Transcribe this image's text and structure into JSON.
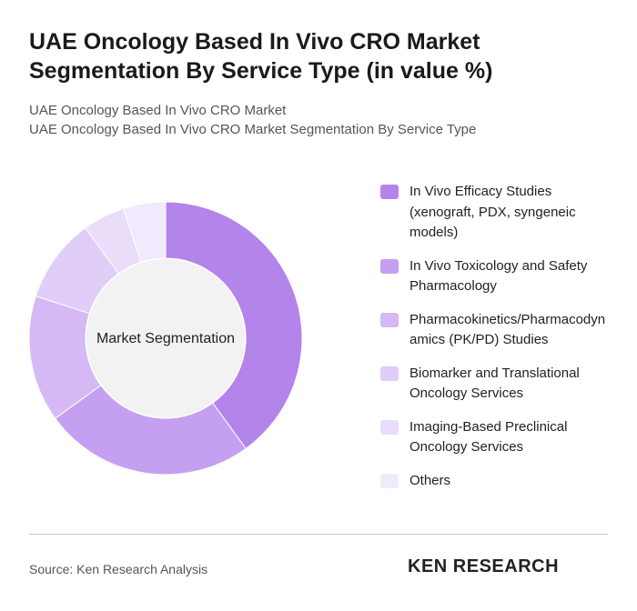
{
  "chart_data": {
    "type": "donut",
    "title": "UAE Oncology Based In Vivo CRO Market Segmentation By Service Type (in value %)",
    "subtitle": [
      "UAE Oncology Based In Vivo CRO Market",
      "UAE Oncology Based In Vivo CRO Market Segmentation By Service Type"
    ],
    "center_label": "Market Segmentation",
    "categories": [
      "In Vivo Efficacy Studies (xenograft, PDX, syngeneic models)",
      "In Vivo Toxicology and Safety Pharmacology",
      "Pharmacokinetics/Pharmacodynamics (PK/PD) Studies",
      "Biomarker and Translational Oncology Services",
      "Imaging-Based Preclinical Oncology Services",
      "Others"
    ],
    "values": [
      40,
      25,
      15,
      10,
      5,
      5
    ],
    "colors": [
      "#b384ea",
      "#c5a0f1",
      "#d4b9f5",
      "#e0cdf8",
      "#e9ddfa",
      "#f1eafc"
    ],
    "source": "Source: Ken Research Analysis",
    "logo": "KEN RESEARCH"
  }
}
